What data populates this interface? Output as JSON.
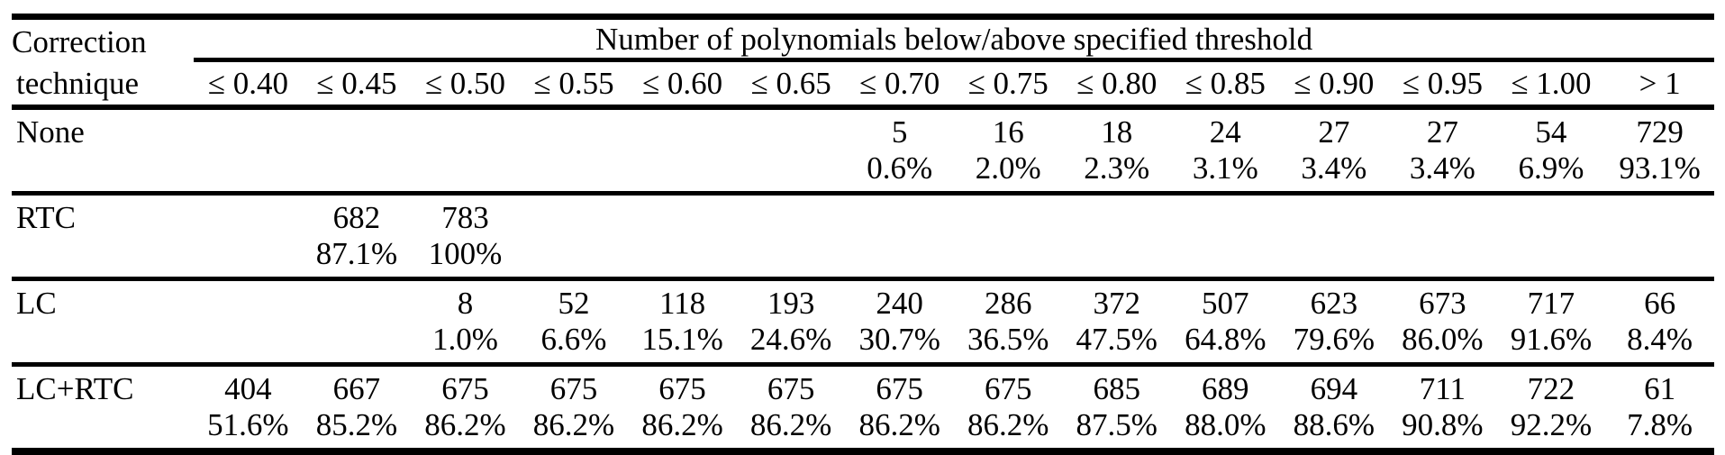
{
  "colors": {
    "text": "#000000",
    "background": "#ffffff",
    "rule": "#000000"
  },
  "table": {
    "corner_header_line1": "Correction",
    "corner_header_line2": "technique",
    "span_header": "Number of polynomials below/above specified threshold",
    "thresholds": [
      "≤ 0.40",
      "≤ 0.45",
      "≤ 0.50",
      "≤ 0.55",
      "≤ 0.60",
      "≤ 0.65",
      "≤ 0.70",
      "≤ 0.75",
      "≤ 0.80",
      "≤ 0.85",
      "≤ 0.90",
      "≤ 0.95",
      "≤ 1.00",
      "> 1"
    ],
    "rows": [
      {
        "label": "None",
        "values": [
          null,
          null,
          null,
          null,
          null,
          null,
          {
            "count": "5",
            "percent": "0.6%"
          },
          {
            "count": "16",
            "percent": "2.0%"
          },
          {
            "count": "18",
            "percent": "2.3%"
          },
          {
            "count": "24",
            "percent": "3.1%"
          },
          {
            "count": "27",
            "percent": "3.4%"
          },
          {
            "count": "27",
            "percent": "3.4%"
          },
          {
            "count": "54",
            "percent": "6.9%"
          },
          {
            "count": "729",
            "percent": "93.1%"
          }
        ]
      },
      {
        "label": "RTC",
        "values": [
          null,
          {
            "count": "682",
            "percent": "87.1%"
          },
          {
            "count": "783",
            "percent": "100%"
          },
          null,
          null,
          null,
          null,
          null,
          null,
          null,
          null,
          null,
          null,
          null
        ]
      },
      {
        "label": "LC",
        "values": [
          null,
          null,
          {
            "count": "8",
            "percent": "1.0%"
          },
          {
            "count": "52",
            "percent": "6.6%"
          },
          {
            "count": "118",
            "percent": "15.1%"
          },
          {
            "count": "193",
            "percent": "24.6%"
          },
          {
            "count": "240",
            "percent": "30.7%"
          },
          {
            "count": "286",
            "percent": "36.5%"
          },
          {
            "count": "372",
            "percent": "47.5%"
          },
          {
            "count": "507",
            "percent": "64.8%"
          },
          {
            "count": "623",
            "percent": "79.6%"
          },
          {
            "count": "673",
            "percent": "86.0%"
          },
          {
            "count": "717",
            "percent": "91.6%"
          },
          {
            "count": "66",
            "percent": "8.4%"
          }
        ]
      },
      {
        "label": "LC+RTC",
        "values": [
          {
            "count": "404",
            "percent": "51.6%"
          },
          {
            "count": "667",
            "percent": "85.2%"
          },
          {
            "count": "675",
            "percent": "86.2%"
          },
          {
            "count": "675",
            "percent": "86.2%"
          },
          {
            "count": "675",
            "percent": "86.2%"
          },
          {
            "count": "675",
            "percent": "86.2%"
          },
          {
            "count": "675",
            "percent": "86.2%"
          },
          {
            "count": "675",
            "percent": "86.2%"
          },
          {
            "count": "685",
            "percent": "87.5%"
          },
          {
            "count": "689",
            "percent": "88.0%"
          },
          {
            "count": "694",
            "percent": "88.6%"
          },
          {
            "count": "711",
            "percent": "90.8%"
          },
          {
            "count": "722",
            "percent": "92.2%"
          },
          {
            "count": "61",
            "percent": "7.8%"
          }
        ]
      }
    ]
  }
}
